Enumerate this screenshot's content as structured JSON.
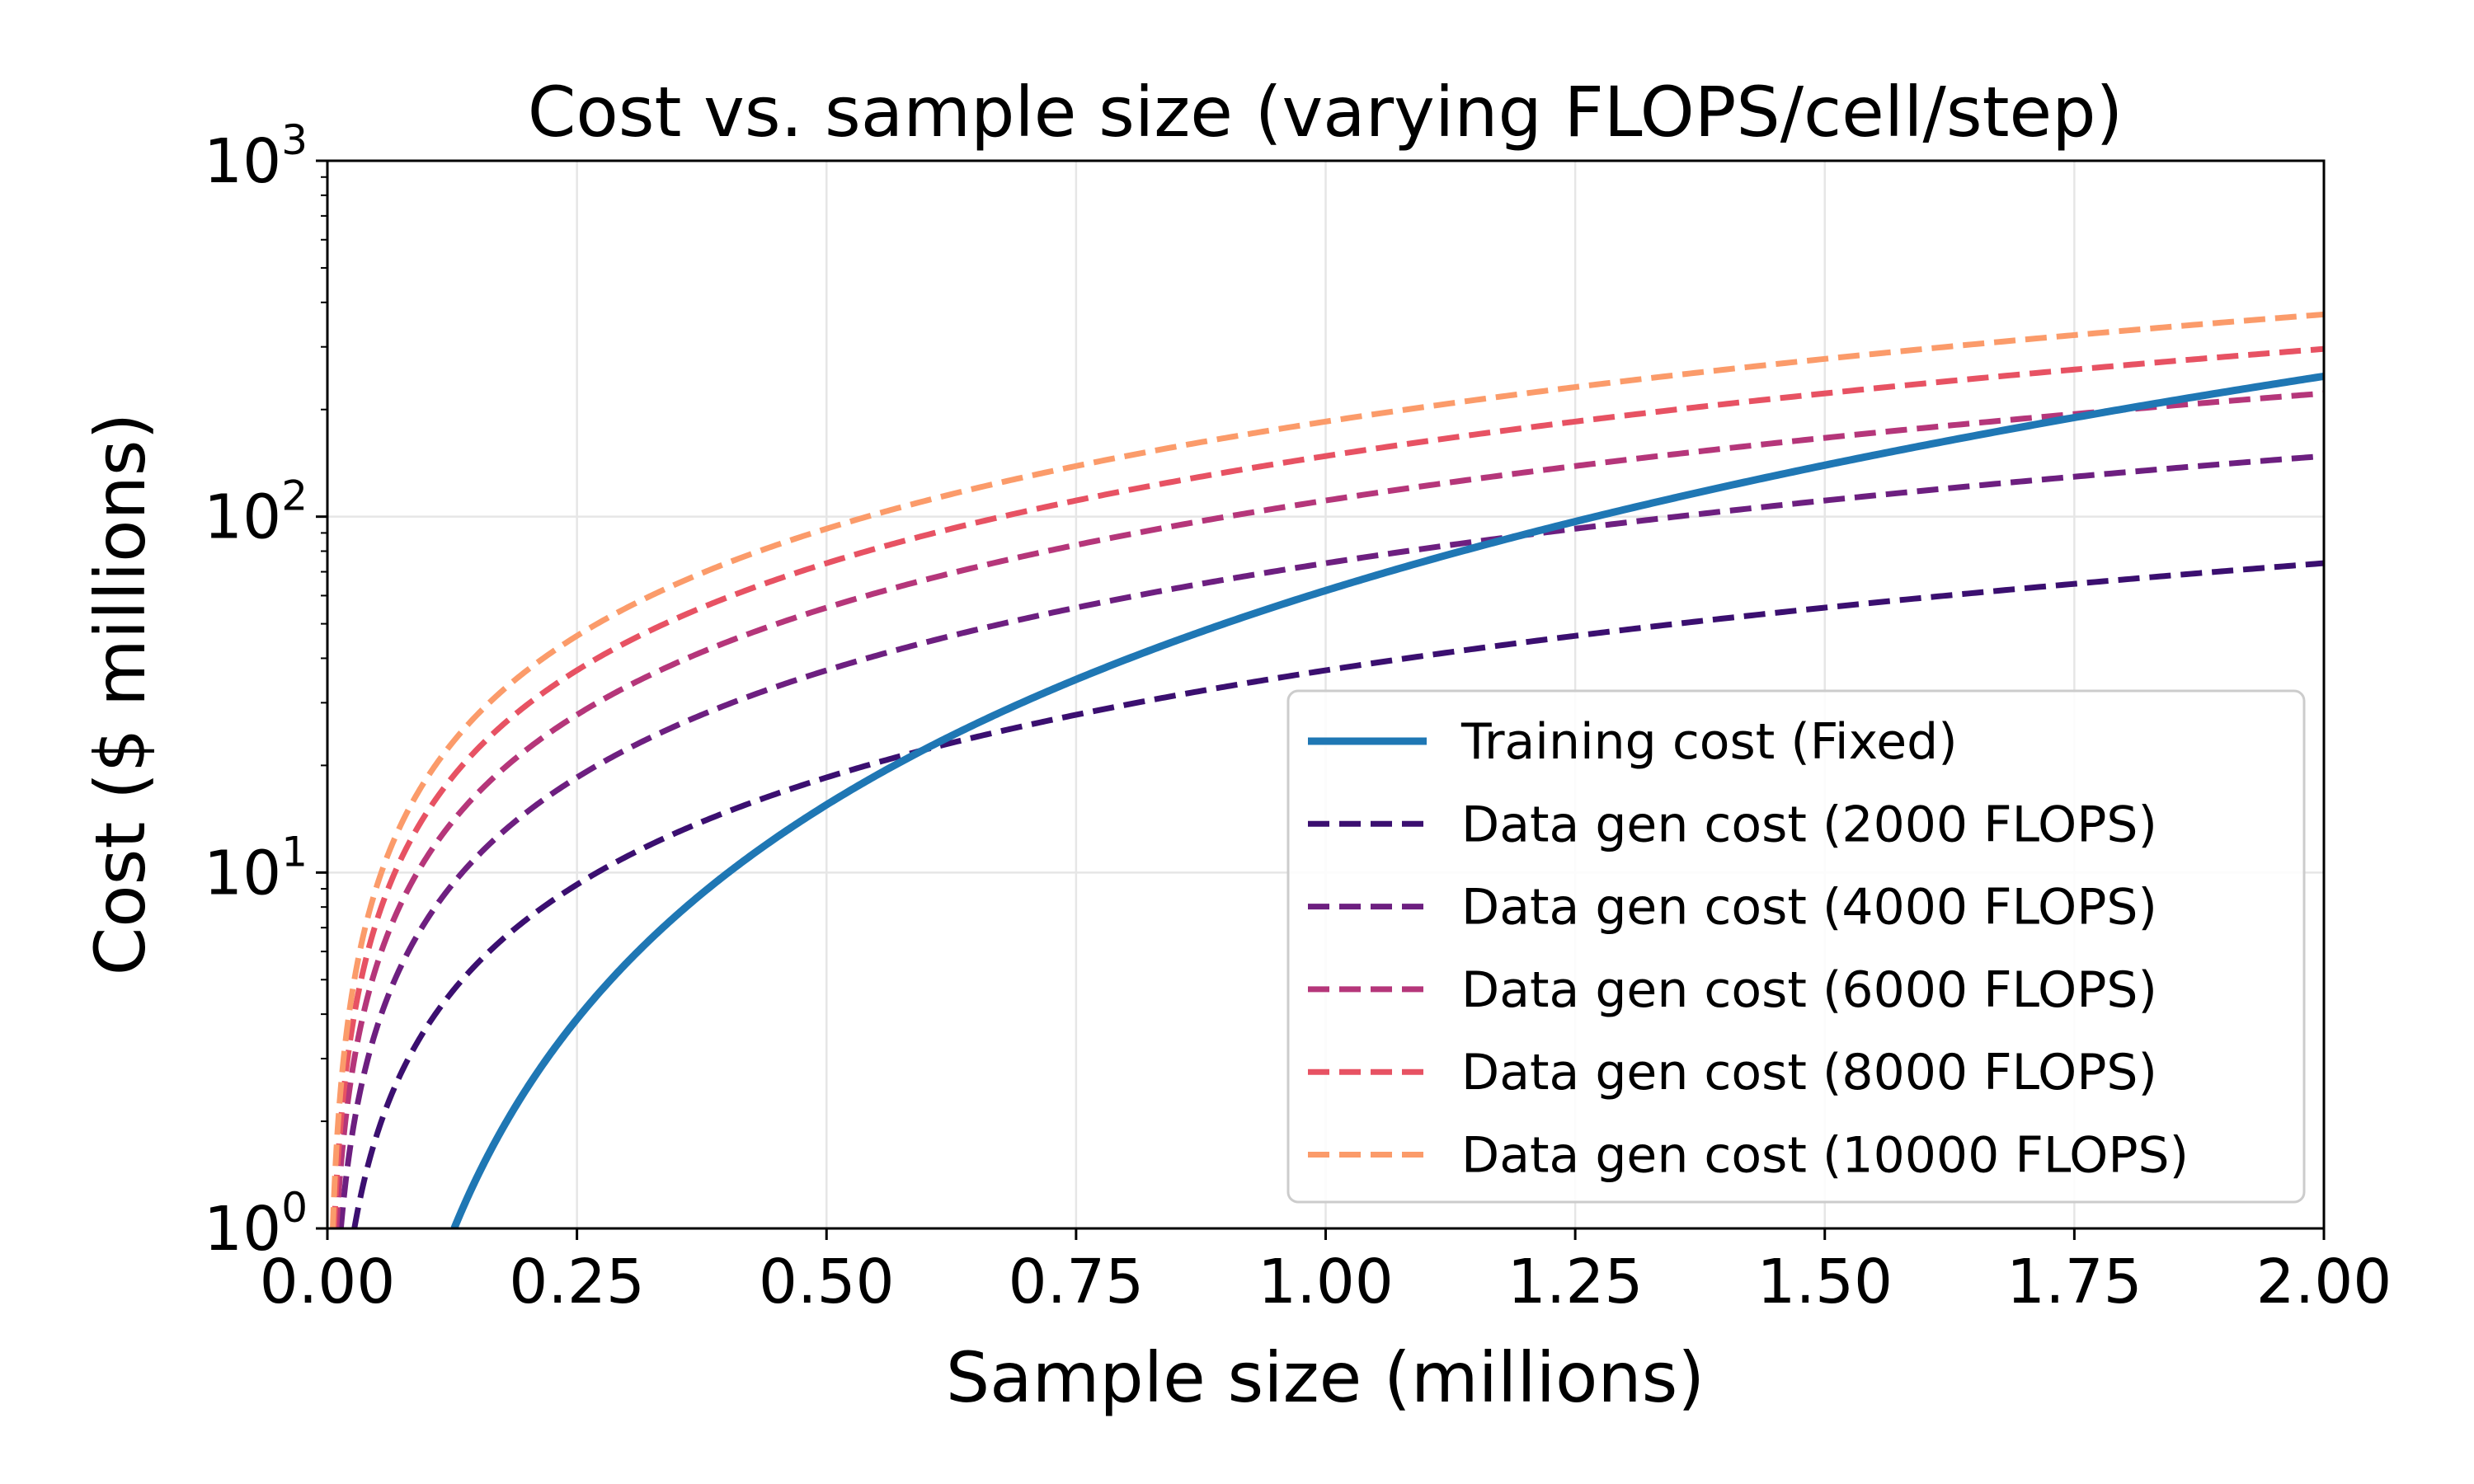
{
  "chart_data": {
    "type": "line",
    "title": "Cost vs. sample size (varying FLOPS/cell/step)",
    "xlabel": "Sample size (millions)",
    "ylabel": "Cost ($ millions)",
    "xlim": [
      0,
      2
    ],
    "ylim": [
      1,
      1000
    ],
    "yscale": "log",
    "grid": true,
    "legend_position": "lower-right",
    "x_ticks": [
      "0.00",
      "0.25",
      "0.50",
      "0.75",
      "1.00",
      "1.25",
      "1.50",
      "1.75",
      "2.00"
    ],
    "y_ticks": [
      {
        "base": "10",
        "exp": "0",
        "value": 1
      },
      {
        "base": "10",
        "exp": "1",
        "value": 10
      },
      {
        "base": "10",
        "exp": "2",
        "value": 100
      },
      {
        "base": "10",
        "exp": "3",
        "value": 1000
      }
    ],
    "series": [
      {
        "name": "Training cost (Fixed)",
        "style": "solid",
        "color": "#1f77b4",
        "model": "a*x^2",
        "coefficient": 62,
        "x_start": 0.127
      },
      {
        "name": "Data gen cost (2000 FLOPS)",
        "style": "dashed",
        "color": "#3b0f70",
        "model": "a*x",
        "coefficient": 37,
        "x_start": 0.027
      },
      {
        "name": "Data gen cost (4000 FLOPS)",
        "style": "dashed",
        "color": "#6d1f80",
        "model": "a*x",
        "coefficient": 74,
        "x_start": 0.0135
      },
      {
        "name": "Data gen cost (6000 FLOPS)",
        "style": "dashed",
        "color": "#b5367a",
        "model": "a*x",
        "coefficient": 111,
        "x_start": 0.009
      },
      {
        "name": "Data gen cost (8000 FLOPS)",
        "style": "dashed",
        "color": "#e75263",
        "model": "a*x",
        "coefficient": 148,
        "x_start": 0.0068
      },
      {
        "name": "Data gen cost (10000 FLOPS)",
        "style": "dashed",
        "color": "#fb9b6a",
        "model": "a*x",
        "coefficient": 185,
        "x_start": 0.0054
      }
    ]
  }
}
